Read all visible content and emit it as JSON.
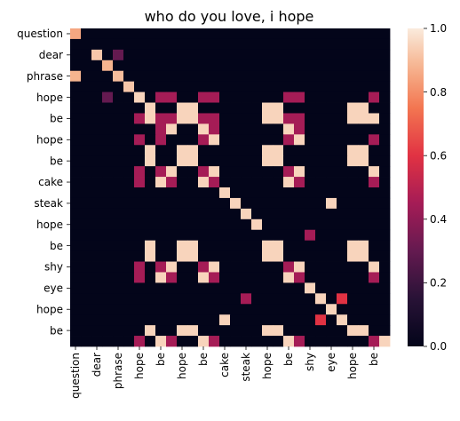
{
  "chart_data": {
    "type": "heatmap",
    "title": "who do you love, i hope",
    "xlabel": "",
    "ylabel": "",
    "row_labels": [
      "question",
      "",
      "dear",
      "",
      "phrase",
      "",
      "hope",
      "",
      "be",
      "",
      "hope",
      "",
      "be",
      "",
      "cake",
      "",
      "steak",
      "",
      "hope",
      "",
      "be",
      "",
      "shy",
      "",
      "eye",
      "",
      "hope",
      "",
      "be",
      ""
    ],
    "col_labels": [
      "question",
      "",
      "dear",
      "",
      "phrase",
      "",
      "hope",
      "",
      "be",
      "",
      "hope",
      "",
      "be",
      "",
      "cake",
      "",
      "steak",
      "",
      "hope",
      "",
      "be",
      "",
      "shy",
      "",
      "eye",
      "",
      "hope",
      "",
      "be",
      ""
    ],
    "x_tick_labels": [
      "question",
      "dear",
      "phrase",
      "hope",
      "be",
      "hope",
      "be",
      "cake",
      "steak",
      "hope",
      "be",
      "shy",
      "eye",
      "hope",
      "be"
    ],
    "y_tick_labels": [
      "question",
      "dear",
      "phrase",
      "hope",
      "be",
      "hope",
      "be",
      "cake",
      "steak",
      "hope",
      "be",
      "shy",
      "eye",
      "hope",
      "be"
    ],
    "values": [
      [
        0.85,
        0,
        0,
        0,
        0,
        0,
        0,
        0,
        0,
        0,
        0,
        0,
        0,
        0,
        0,
        0,
        0,
        0,
        0,
        0,
        0,
        0,
        0,
        0,
        0,
        0,
        0,
        0,
        0,
        0
      ],
      [
        0,
        0,
        0,
        0,
        0,
        0,
        0,
        0,
        0,
        0,
        0,
        0,
        0,
        0,
        0,
        0,
        0,
        0,
        0,
        0,
        0,
        0,
        0,
        0,
        0,
        0,
        0,
        0,
        0,
        0
      ],
      [
        0,
        0,
        0.92,
        0,
        0.3,
        0,
        0,
        0,
        0,
        0,
        0,
        0,
        0,
        0,
        0,
        0,
        0,
        0,
        0,
        0,
        0,
        0,
        0,
        0,
        0,
        0,
        0,
        0,
        0,
        0
      ],
      [
        0,
        0,
        0,
        0.88,
        0,
        0,
        0,
        0,
        0,
        0,
        0,
        0,
        0,
        0,
        0,
        0,
        0,
        0,
        0,
        0,
        0,
        0,
        0,
        0,
        0,
        0,
        0,
        0,
        0,
        0
      ],
      [
        0.88,
        0,
        0,
        0,
        0.9,
        0,
        0,
        0,
        0,
        0,
        0,
        0,
        0,
        0,
        0,
        0,
        0,
        0,
        0,
        0,
        0,
        0,
        0,
        0,
        0,
        0,
        0,
        0,
        0,
        0
      ],
      [
        0,
        0,
        0,
        0,
        0,
        0.92,
        0,
        0,
        0,
        0,
        0,
        0,
        0,
        0,
        0,
        0,
        0,
        0,
        0,
        0,
        0,
        0,
        0,
        0,
        0,
        0,
        0,
        0,
        0,
        0
      ],
      [
        0,
        0,
        0,
        0.3,
        0,
        0,
        0.95,
        0,
        0.45,
        0.45,
        0,
        0,
        0.45,
        0.45,
        0,
        0,
        0,
        0,
        0,
        0,
        0.45,
        0.45,
        0,
        0,
        0,
        0,
        0,
        0,
        0.45,
        0
      ],
      [
        0,
        0,
        0,
        0,
        0,
        0,
        0,
        0.95,
        0,
        0,
        0.95,
        0.95,
        0,
        0,
        0,
        0,
        0,
        0,
        0.95,
        0.95,
        0,
        0,
        0,
        0,
        0,
        0,
        0.95,
        0.95,
        0,
        0
      ],
      [
        0,
        0,
        0,
        0,
        0,
        0,
        0.45,
        0.95,
        0.45,
        0.45,
        0.95,
        0.95,
        0.45,
        0.45,
        0,
        0,
        0,
        0,
        0.95,
        0.95,
        0.45,
        0.45,
        0,
        0,
        0,
        0,
        0.95,
        0.95,
        0.95,
        0
      ],
      [
        0,
        0,
        0,
        0,
        0,
        0,
        0,
        0,
        0.45,
        0.95,
        0,
        0,
        0.95,
        0.45,
        0,
        0,
        0,
        0,
        0,
        0,
        0.95,
        0.45,
        0,
        0,
        0,
        0,
        0,
        0,
        0,
        0
      ],
      [
        0,
        0,
        0,
        0,
        0,
        0,
        0.45,
        0,
        0.45,
        0,
        0,
        0,
        0.45,
        0.95,
        0,
        0,
        0,
        0,
        0,
        0,
        0.45,
        0.95,
        0,
        0,
        0,
        0,
        0,
        0,
        0.45,
        0
      ],
      [
        0,
        0,
        0,
        0,
        0,
        0,
        0,
        0.95,
        0,
        0,
        0.95,
        0.95,
        0,
        0,
        0,
        0,
        0,
        0,
        0.95,
        0.95,
        0,
        0,
        0,
        0,
        0,
        0,
        0.95,
        0.95,
        0,
        0
      ],
      [
        0,
        0,
        0,
        0,
        0,
        0,
        0,
        0.95,
        0,
        0,
        0.95,
        0.95,
        0,
        0,
        0,
        0,
        0,
        0,
        0.95,
        0.95,
        0,
        0,
        0,
        0,
        0,
        0,
        0.95,
        0.95,
        0,
        0
      ],
      [
        0,
        0,
        0,
        0,
        0,
        0,
        0.45,
        0,
        0.45,
        0.95,
        0,
        0,
        0.45,
        0.95,
        0,
        0,
        0,
        0,
        0,
        0,
        0.45,
        0.95,
        0,
        0,
        0,
        0,
        0,
        0,
        0.95,
        0
      ],
      [
        0,
        0,
        0,
        0,
        0,
        0,
        0.45,
        0,
        0.95,
        0.45,
        0,
        0,
        0.95,
        0.45,
        0,
        0,
        0,
        0,
        0,
        0,
        0.95,
        0.45,
        0,
        0,
        0,
        0,
        0,
        0,
        0.45,
        0
      ],
      [
        0,
        0,
        0,
        0,
        0,
        0,
        0,
        0,
        0,
        0,
        0,
        0,
        0,
        0,
        0.95,
        0,
        0,
        0,
        0,
        0,
        0,
        0,
        0,
        0,
        0,
        0,
        0,
        0,
        0,
        0
      ],
      [
        0,
        0,
        0,
        0,
        0,
        0,
        0,
        0,
        0,
        0,
        0,
        0,
        0,
        0,
        0,
        0.95,
        0,
        0,
        0,
        0,
        0,
        0,
        0,
        0,
        0.95,
        0,
        0,
        0,
        0,
        0
      ],
      [
        0,
        0,
        0,
        0,
        0,
        0,
        0,
        0,
        0,
        0,
        0,
        0,
        0,
        0,
        0,
        0,
        0.95,
        0,
        0,
        0,
        0,
        0,
        0,
        0,
        0,
        0,
        0,
        0,
        0,
        0
      ],
      [
        0,
        0,
        0,
        0,
        0,
        0,
        0,
        0,
        0,
        0,
        0,
        0,
        0,
        0,
        0,
        0,
        0,
        0.95,
        0,
        0,
        0,
        0,
        0,
        0,
        0,
        0,
        0,
        0,
        0,
        0
      ],
      [
        0,
        0,
        0,
        0,
        0,
        0,
        0,
        0,
        0,
        0,
        0,
        0,
        0,
        0,
        0,
        0,
        0,
        0,
        0,
        0,
        0,
        0,
        0.45,
        0,
        0,
        0,
        0,
        0,
        0,
        0
      ],
      [
        0,
        0,
        0,
        0,
        0,
        0,
        0,
        0.95,
        0,
        0,
        0.95,
        0.95,
        0,
        0,
        0,
        0,
        0,
        0,
        0.95,
        0.95,
        0,
        0,
        0,
        0,
        0,
        0,
        0.95,
        0.95,
        0,
        0
      ],
      [
        0,
        0,
        0,
        0,
        0,
        0,
        0,
        0.95,
        0,
        0,
        0.95,
        0.95,
        0,
        0,
        0,
        0,
        0,
        0,
        0.95,
        0.95,
        0,
        0,
        0,
        0,
        0,
        0,
        0.95,
        0.95,
        0,
        0
      ],
      [
        0,
        0,
        0,
        0,
        0,
        0,
        0.45,
        0,
        0.45,
        0.95,
        0,
        0,
        0.45,
        0.95,
        0,
        0,
        0,
        0,
        0,
        0,
        0.45,
        0.95,
        0,
        0,
        0,
        0,
        0,
        0,
        0.95,
        0
      ],
      [
        0,
        0,
        0,
        0,
        0,
        0,
        0.45,
        0,
        0.95,
        0.45,
        0,
        0,
        0.95,
        0.45,
        0,
        0,
        0,
        0,
        0,
        0,
        0.95,
        0.45,
        0,
        0,
        0,
        0,
        0,
        0,
        0.45,
        0
      ],
      [
        0,
        0,
        0,
        0,
        0,
        0,
        0,
        0,
        0,
        0,
        0,
        0,
        0,
        0,
        0,
        0,
        0,
        0,
        0,
        0,
        0,
        0,
        0.95,
        0,
        0,
        0,
        0,
        0,
        0,
        0
      ],
      [
        0,
        0,
        0,
        0,
        0,
        0,
        0,
        0,
        0,
        0,
        0,
        0,
        0,
        0,
        0,
        0,
        0.45,
        0,
        0,
        0,
        0,
        0,
        0,
        0.95,
        0,
        0.6,
        0,
        0,
        0,
        0
      ],
      [
        0,
        0,
        0,
        0,
        0,
        0,
        0,
        0,
        0,
        0,
        0,
        0,
        0,
        0,
        0,
        0,
        0,
        0,
        0,
        0,
        0,
        0,
        0,
        0,
        0.95,
        0,
        0,
        0,
        0,
        0
      ],
      [
        0,
        0,
        0,
        0,
        0,
        0,
        0,
        0,
        0,
        0,
        0,
        0,
        0,
        0,
        0.95,
        0,
        0,
        0,
        0,
        0,
        0,
        0,
        0,
        0.6,
        0,
        0.95,
        0,
        0,
        0,
        0
      ],
      [
        0,
        0,
        0,
        0,
        0,
        0,
        0,
        0.95,
        0,
        0,
        0.95,
        0.95,
        0,
        0,
        0,
        0,
        0,
        0,
        0.95,
        0.95,
        0,
        0,
        0,
        0,
        0,
        0,
        0.95,
        0.95,
        0,
        0
      ],
      [
        0,
        0,
        0,
        0,
        0,
        0,
        0.45,
        0,
        0.95,
        0.45,
        0,
        0,
        0.95,
        0.45,
        0,
        0,
        0,
        0,
        0,
        0,
        0.95,
        0.45,
        0,
        0,
        0,
        0,
        0,
        0,
        0.45,
        0.95
      ]
    ],
    "colorbar": {
      "min": 0.0,
      "max": 1.0,
      "ticks": [
        "0.0",
        "0.2",
        "0.4",
        "0.6",
        "0.8",
        "1.0"
      ]
    },
    "colormap": "rocket",
    "grid": false
  }
}
